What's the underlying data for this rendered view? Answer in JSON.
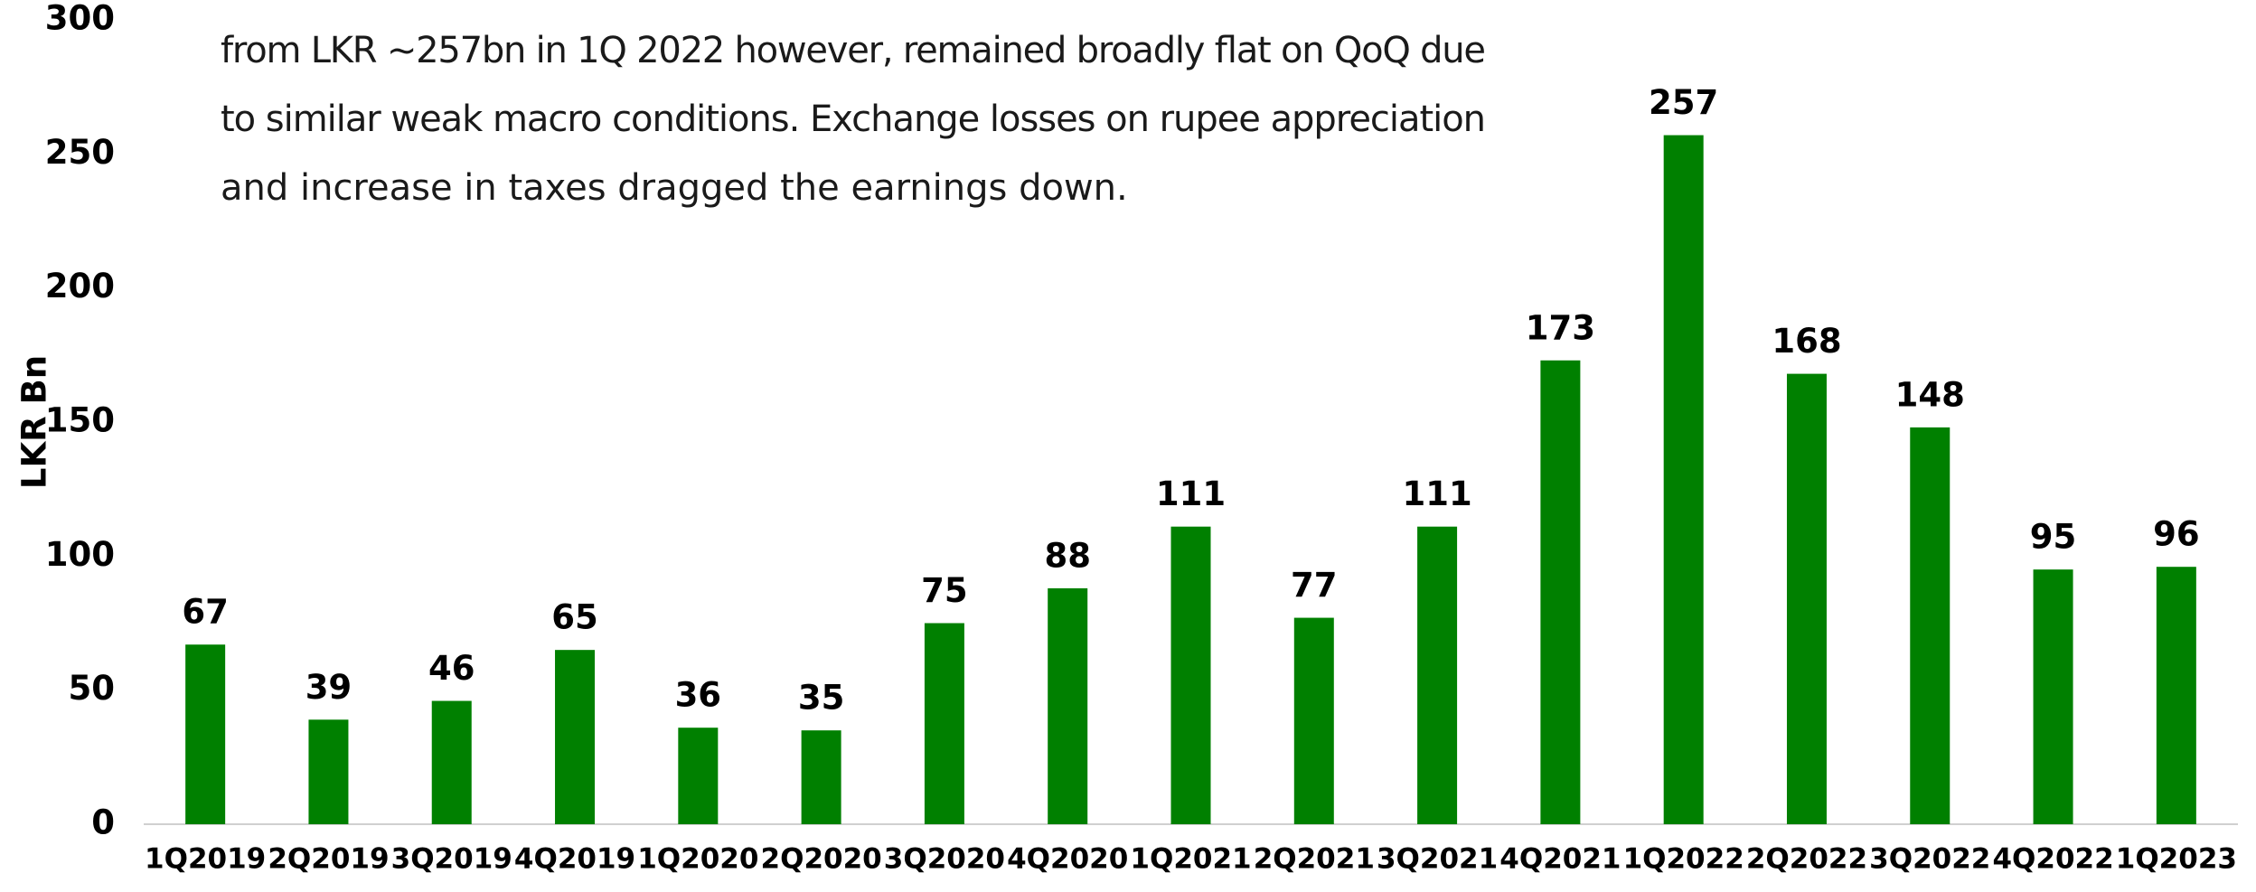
{
  "text_lines": [
    "from LKR ~257bn in 1Q 2022 however, remained broadly flat on QoQ due",
    "to similar weak macro conditions. Exchange losses on rupee appreciation",
    "and increase in taxes dragged the earnings down."
  ],
  "chart_data": {
    "type": "bar",
    "y_label": "LKR Bn",
    "categories": [
      "1Q2019",
      "2Q2019",
      "3Q2019",
      "4Q2019",
      "1Q2020",
      "2Q2020",
      "3Q2020",
      "4Q2020",
      "1Q2021",
      "2Q2021",
      "3Q2021",
      "4Q2021",
      "1Q2022",
      "2Q2022",
      "3Q2022",
      "4Q2022",
      "1Q2023"
    ],
    "values": [
      67,
      39,
      46,
      65,
      36,
      35,
      75,
      88,
      111,
      77,
      111,
      173,
      257,
      168,
      148,
      95,
      96
    ],
    "color": "#008000",
    "ylim": [
      0,
      300
    ],
    "yticks": [
      0,
      50,
      100,
      150,
      200,
      250,
      300
    ],
    "grid": false
  }
}
